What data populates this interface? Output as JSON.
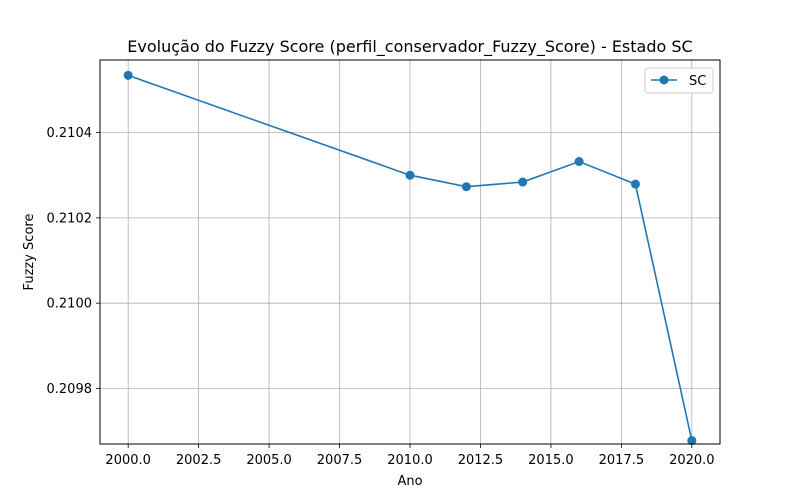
{
  "chart_data": {
    "type": "line",
    "title": "Evolução do Fuzzy Score (perfil_conservador_Fuzzy_Score) - Estado SC",
    "xlabel": "Ano",
    "ylabel": "Fuzzy Score",
    "xlim": [
      1999.0,
      2021.0
    ],
    "ylim": [
      0.20967,
      0.21057
    ],
    "x_ticks": [
      2000.0,
      2002.5,
      2005.0,
      2007.5,
      2010.0,
      2012.5,
      2015.0,
      2017.5,
      2020.0
    ],
    "x_tick_labels": [
      "2000.0",
      "2002.5",
      "2005.0",
      "2007.5",
      "2010.0",
      "2012.5",
      "2015.0",
      "2017.5",
      "2020.0"
    ],
    "y_ticks": [
      0.2098,
      0.21,
      0.2102,
      0.2104
    ],
    "y_tick_labels": [
      "0.2098",
      "0.2100",
      "0.2102",
      "0.2104"
    ],
    "grid": true,
    "legend_position": "top-right",
    "series": [
      {
        "name": "SC",
        "color": "#1f77b4",
        "marker": "circle",
        "x": [
          2000,
          2010,
          2012,
          2014,
          2016,
          2018,
          2020
        ],
        "y": [
          0.210534,
          0.2103,
          0.210273,
          0.210284,
          0.210332,
          0.210279,
          0.209678
        ]
      }
    ]
  }
}
